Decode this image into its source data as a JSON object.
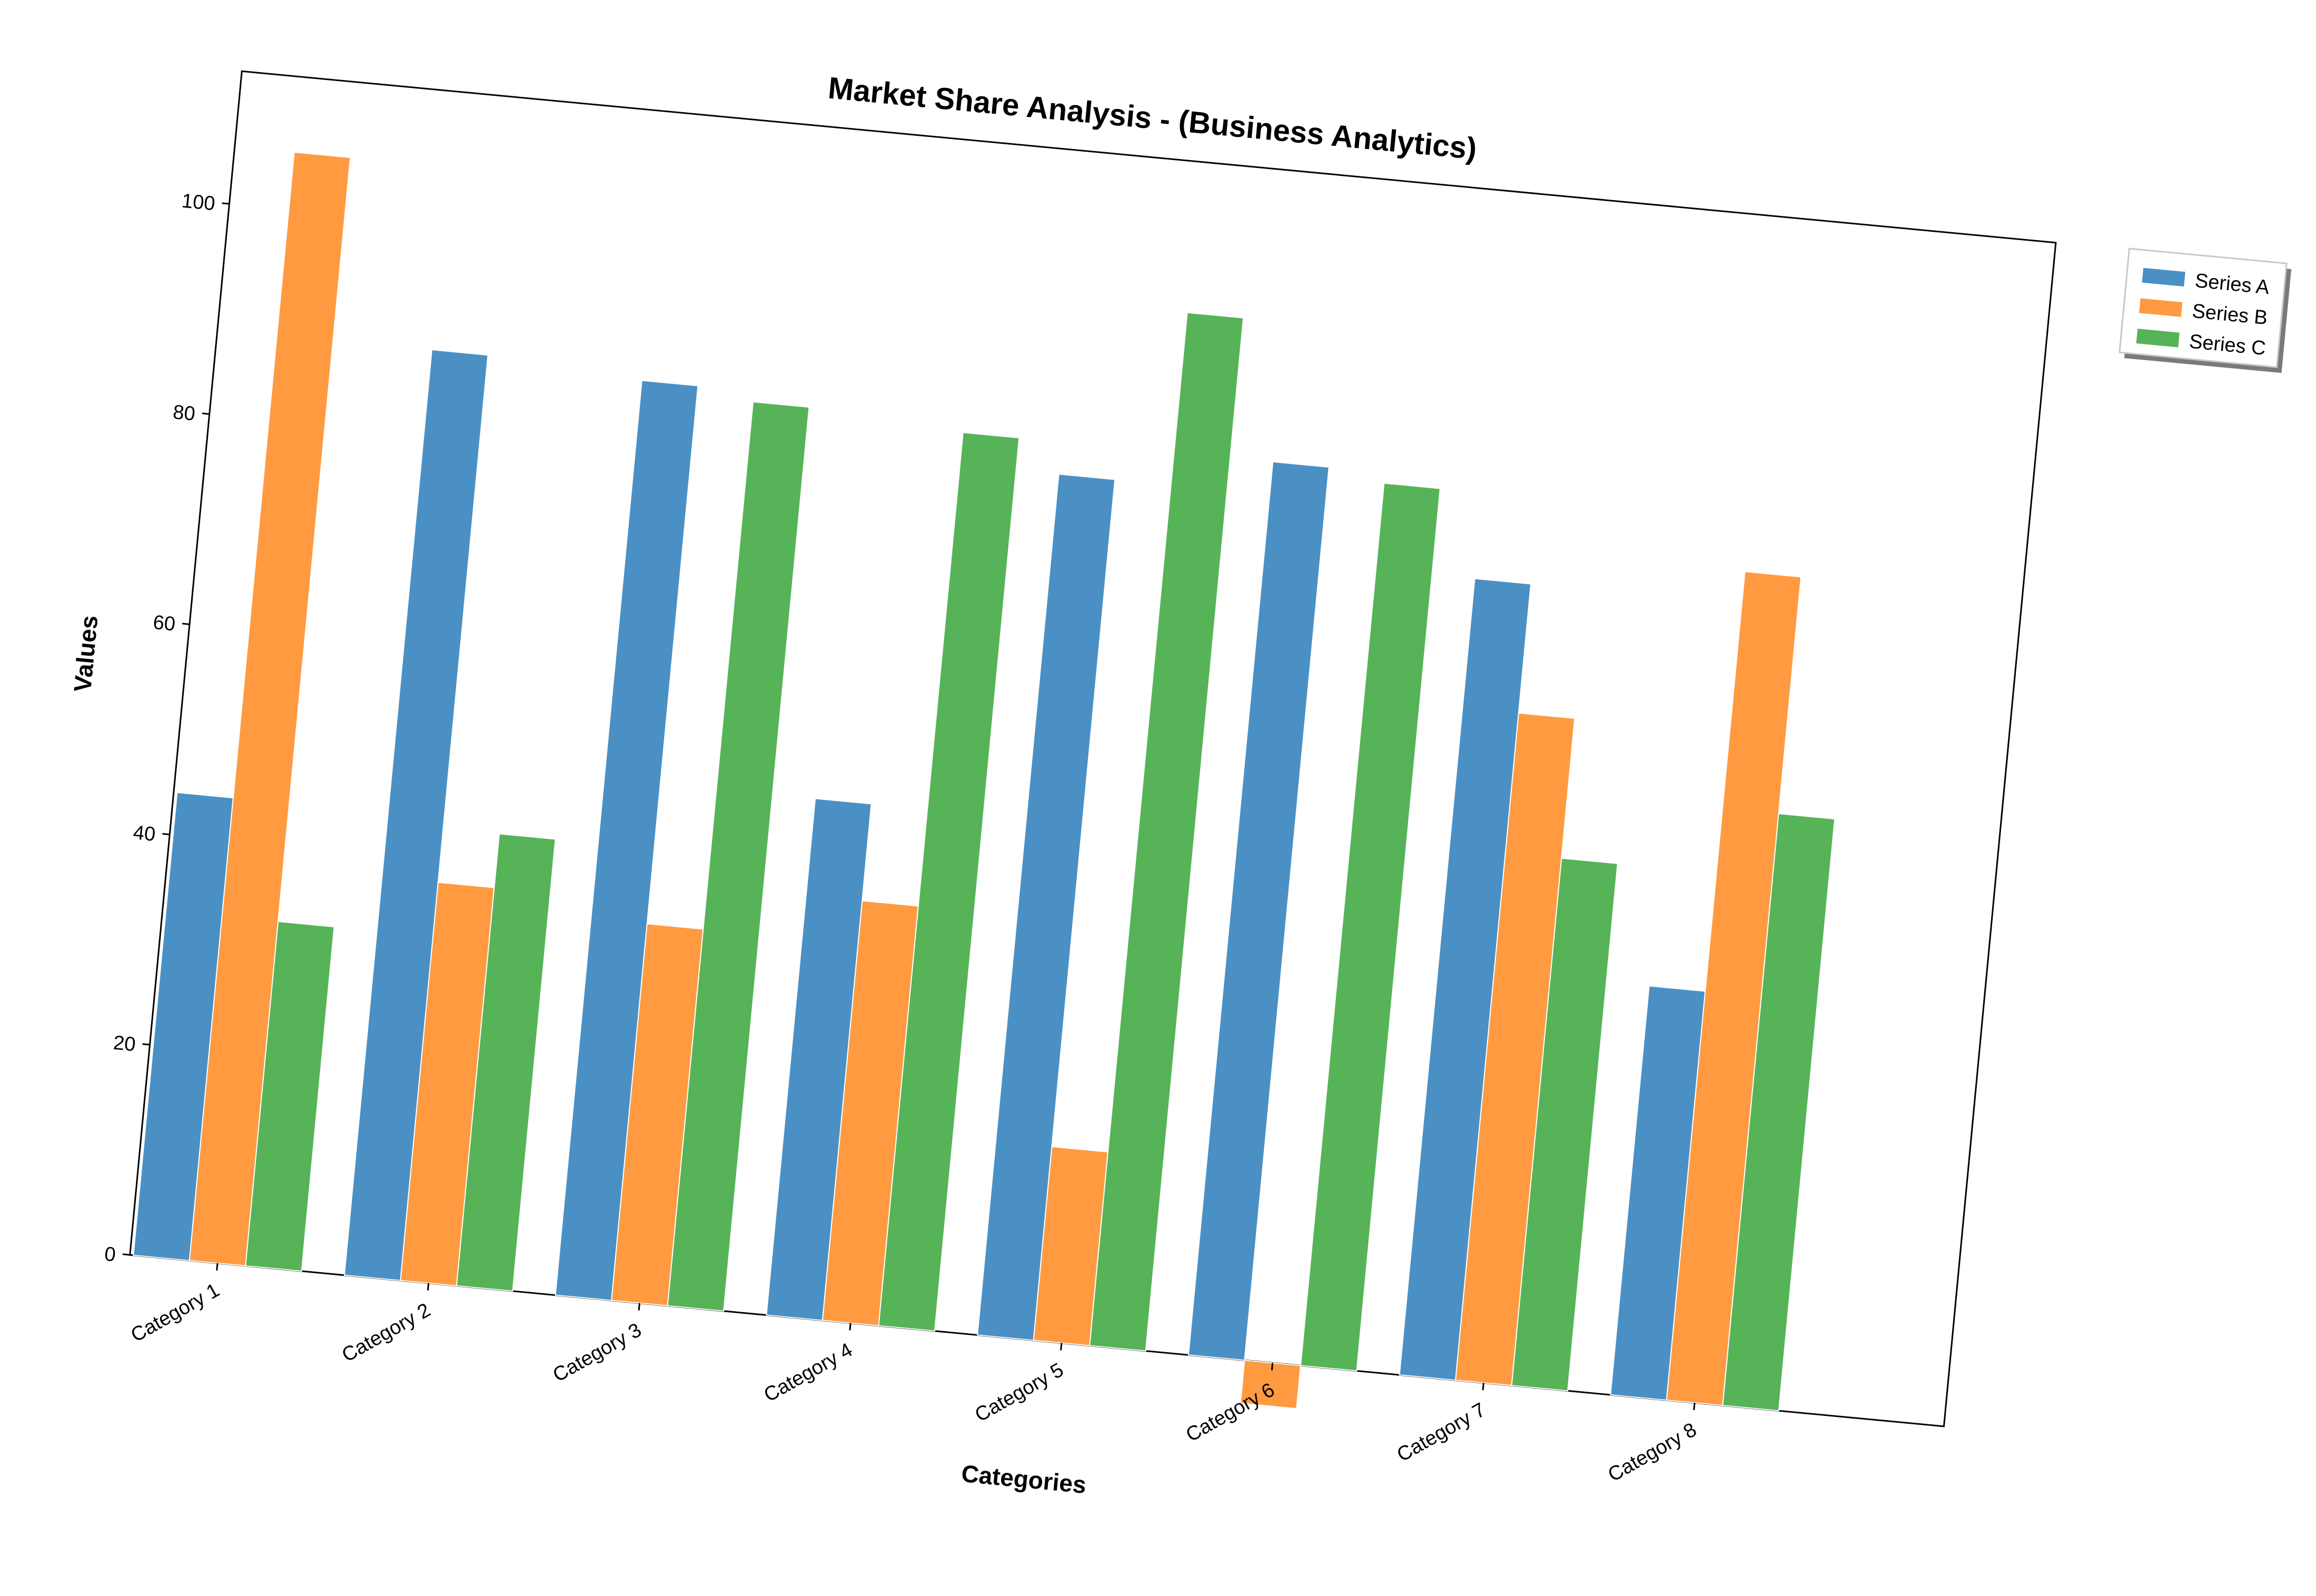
{
  "chart_data": {
    "type": "bar",
    "title": "Market Share Analysis - (Business Analytics)",
    "xlabel": "Categories",
    "ylabel": "Values",
    "categories": [
      "Category 1",
      "Category 2",
      "Category 3",
      "Category 4",
      "Category 5",
      "Category 6",
      "Category 7",
      "Category 8"
    ],
    "series": [
      {
        "name": "Series A",
        "color": "#4a90c4",
        "values": [
          43,
          86,
          85,
          48,
          80,
          83,
          74,
          38
        ]
      },
      {
        "name": "Series B",
        "color": "#ff9a40",
        "values": [
          103,
          37,
          35,
          39,
          18,
          -4,
          62,
          77
        ]
      },
      {
        "name": "Series C",
        "color": "#56b358",
        "values": [
          32,
          42,
          84,
          83,
          96,
          82,
          49,
          55
        ]
      }
    ],
    "yticks": [
      "0",
      "20",
      "40",
      "60",
      "80",
      "100"
    ],
    "ylim": [
      0,
      110
    ],
    "grid": false,
    "legend_position": "right, outside plot"
  }
}
